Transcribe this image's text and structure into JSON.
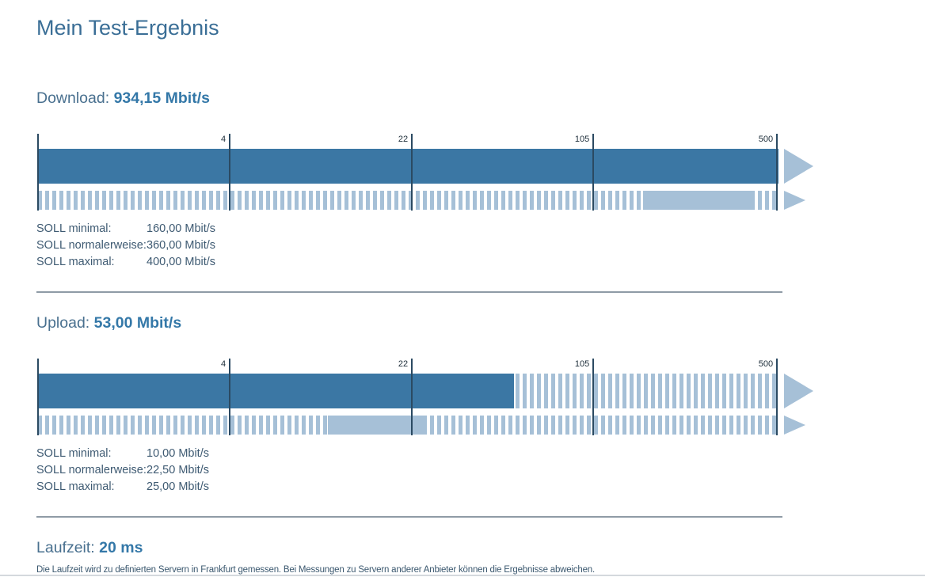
{
  "page": {
    "title": "Mein Test-Ergebnis"
  },
  "download": {
    "label": "Download:",
    "value": "934,15 Mbit/s",
    "soll_rows": [
      {
        "label": "SOLL minimal:",
        "value": "160,00 Mbit/s"
      },
      {
        "label": "SOLL normalerweise:",
        "value": "360,00 Mbit/s"
      },
      {
        "label": "SOLL maximal:",
        "value": "400,00 Mbit/s"
      }
    ]
  },
  "upload": {
    "label": "Upload:",
    "value": "53,00 Mbit/s",
    "soll_rows": [
      {
        "label": "SOLL minimal:",
        "value": "10,00 Mbit/s"
      },
      {
        "label": "SOLL normalerweise:",
        "value": "22,50 Mbit/s"
      },
      {
        "label": "SOLL maximal:",
        "value": "25,00 Mbit/s"
      }
    ]
  },
  "laufzeit": {
    "label": "Laufzeit:",
    "value": "20 ms",
    "note": "Die Laufzeit wird zu definierten Servern in Frankfurt gemessen. Bei Messungen zu Servern anderer Anbieter können die Ergebnisse abweichen."
  },
  "colors": {
    "accent_heading": "#3a6e96",
    "bar_solid": "#3b77a4",
    "bar_light": "#a6c0d7",
    "tick_line": "#2b4a62",
    "divider": "#8f9ba6"
  },
  "chart_data": [
    {
      "type": "bar",
      "name": "download",
      "scale": "log",
      "unit": "Mbit/s",
      "scale_ticks": [
        4,
        22,
        105,
        500
      ],
      "tick_positions_pct": [
        25.9,
        50.5,
        75.0,
        99.8
      ],
      "measured_mbits": 934.15,
      "soll_min_mbits": 160.0,
      "soll_normal_mbits": 360.0,
      "soll_max_mbits": 400.0,
      "overflow_beyond_scale": true
    },
    {
      "type": "bar",
      "name": "upload",
      "scale": "log",
      "unit": "Mbit/s",
      "scale_ticks": [
        4,
        22,
        105,
        500
      ],
      "tick_positions_pct": [
        25.9,
        50.5,
        75.0,
        99.8
      ],
      "measured_mbits": 53.0,
      "soll_min_mbits": 10.0,
      "soll_normal_mbits": 22.5,
      "soll_max_mbits": 25.0,
      "overflow_beyond_scale": false
    }
  ]
}
